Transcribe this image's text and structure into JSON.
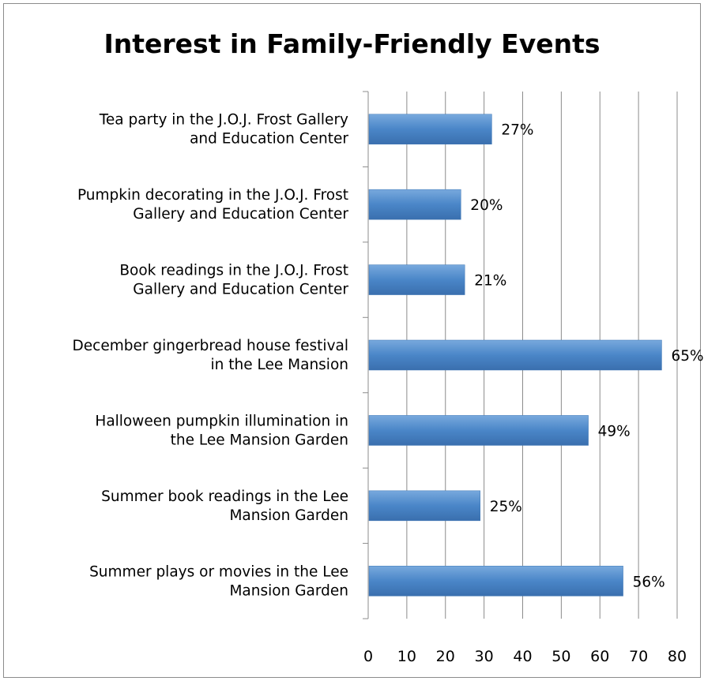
{
  "chart_data": {
    "type": "bar",
    "orientation": "horizontal",
    "title": "Interest in Family-Friendly Events",
    "categories": [
      "Tea party in the J.O.J. Frost Gallery and Education Center",
      "Pumpkin decorating in the J.O.J. Frost Gallery and Education Center",
      "Book readings in the J.O.J. Frost Gallery and Education Center",
      "December gingerbread house festival in the Lee Mansion",
      "Halloween pumpkin illumination in the Lee Mansion Garden",
      "Summer book readings in the Lee Mansion Garden",
      "Summer plays or movies in the Lee Mansion Garden"
    ],
    "category_lines": [
      [
        "Tea party in the J.O.J. Frost Gallery",
        "and Education Center"
      ],
      [
        "Pumpkin decorating in the J.O.J. Frost",
        "Gallery and Education Center"
      ],
      [
        "Book readings in the J.O.J. Frost",
        "Gallery and Education Center"
      ],
      [
        "December gingerbread house festival",
        "in the Lee Mansion"
      ],
      [
        "Halloween pumpkin illumination in",
        "the Lee Mansion Garden"
      ],
      [
        "Summer book readings in the Lee",
        "Mansion Garden"
      ],
      [
        "Summer plays or movies in the Lee",
        "Mansion Garden"
      ]
    ],
    "values": [
      32,
      24,
      25,
      76,
      57,
      29,
      66
    ],
    "data_labels": [
      "27%",
      "20%",
      "21%",
      "65%",
      "49%",
      "25%",
      "56%"
    ],
    "xlim": [
      0,
      80
    ],
    "xticks": [
      0,
      10,
      20,
      30,
      40,
      50,
      60,
      70,
      80
    ],
    "xtick_labels": [
      "0",
      "10",
      "20",
      "30",
      "40",
      "50",
      "60",
      "70",
      "80"
    ],
    "grid": true,
    "legend": "none",
    "bar_color": "#4a86c8"
  }
}
